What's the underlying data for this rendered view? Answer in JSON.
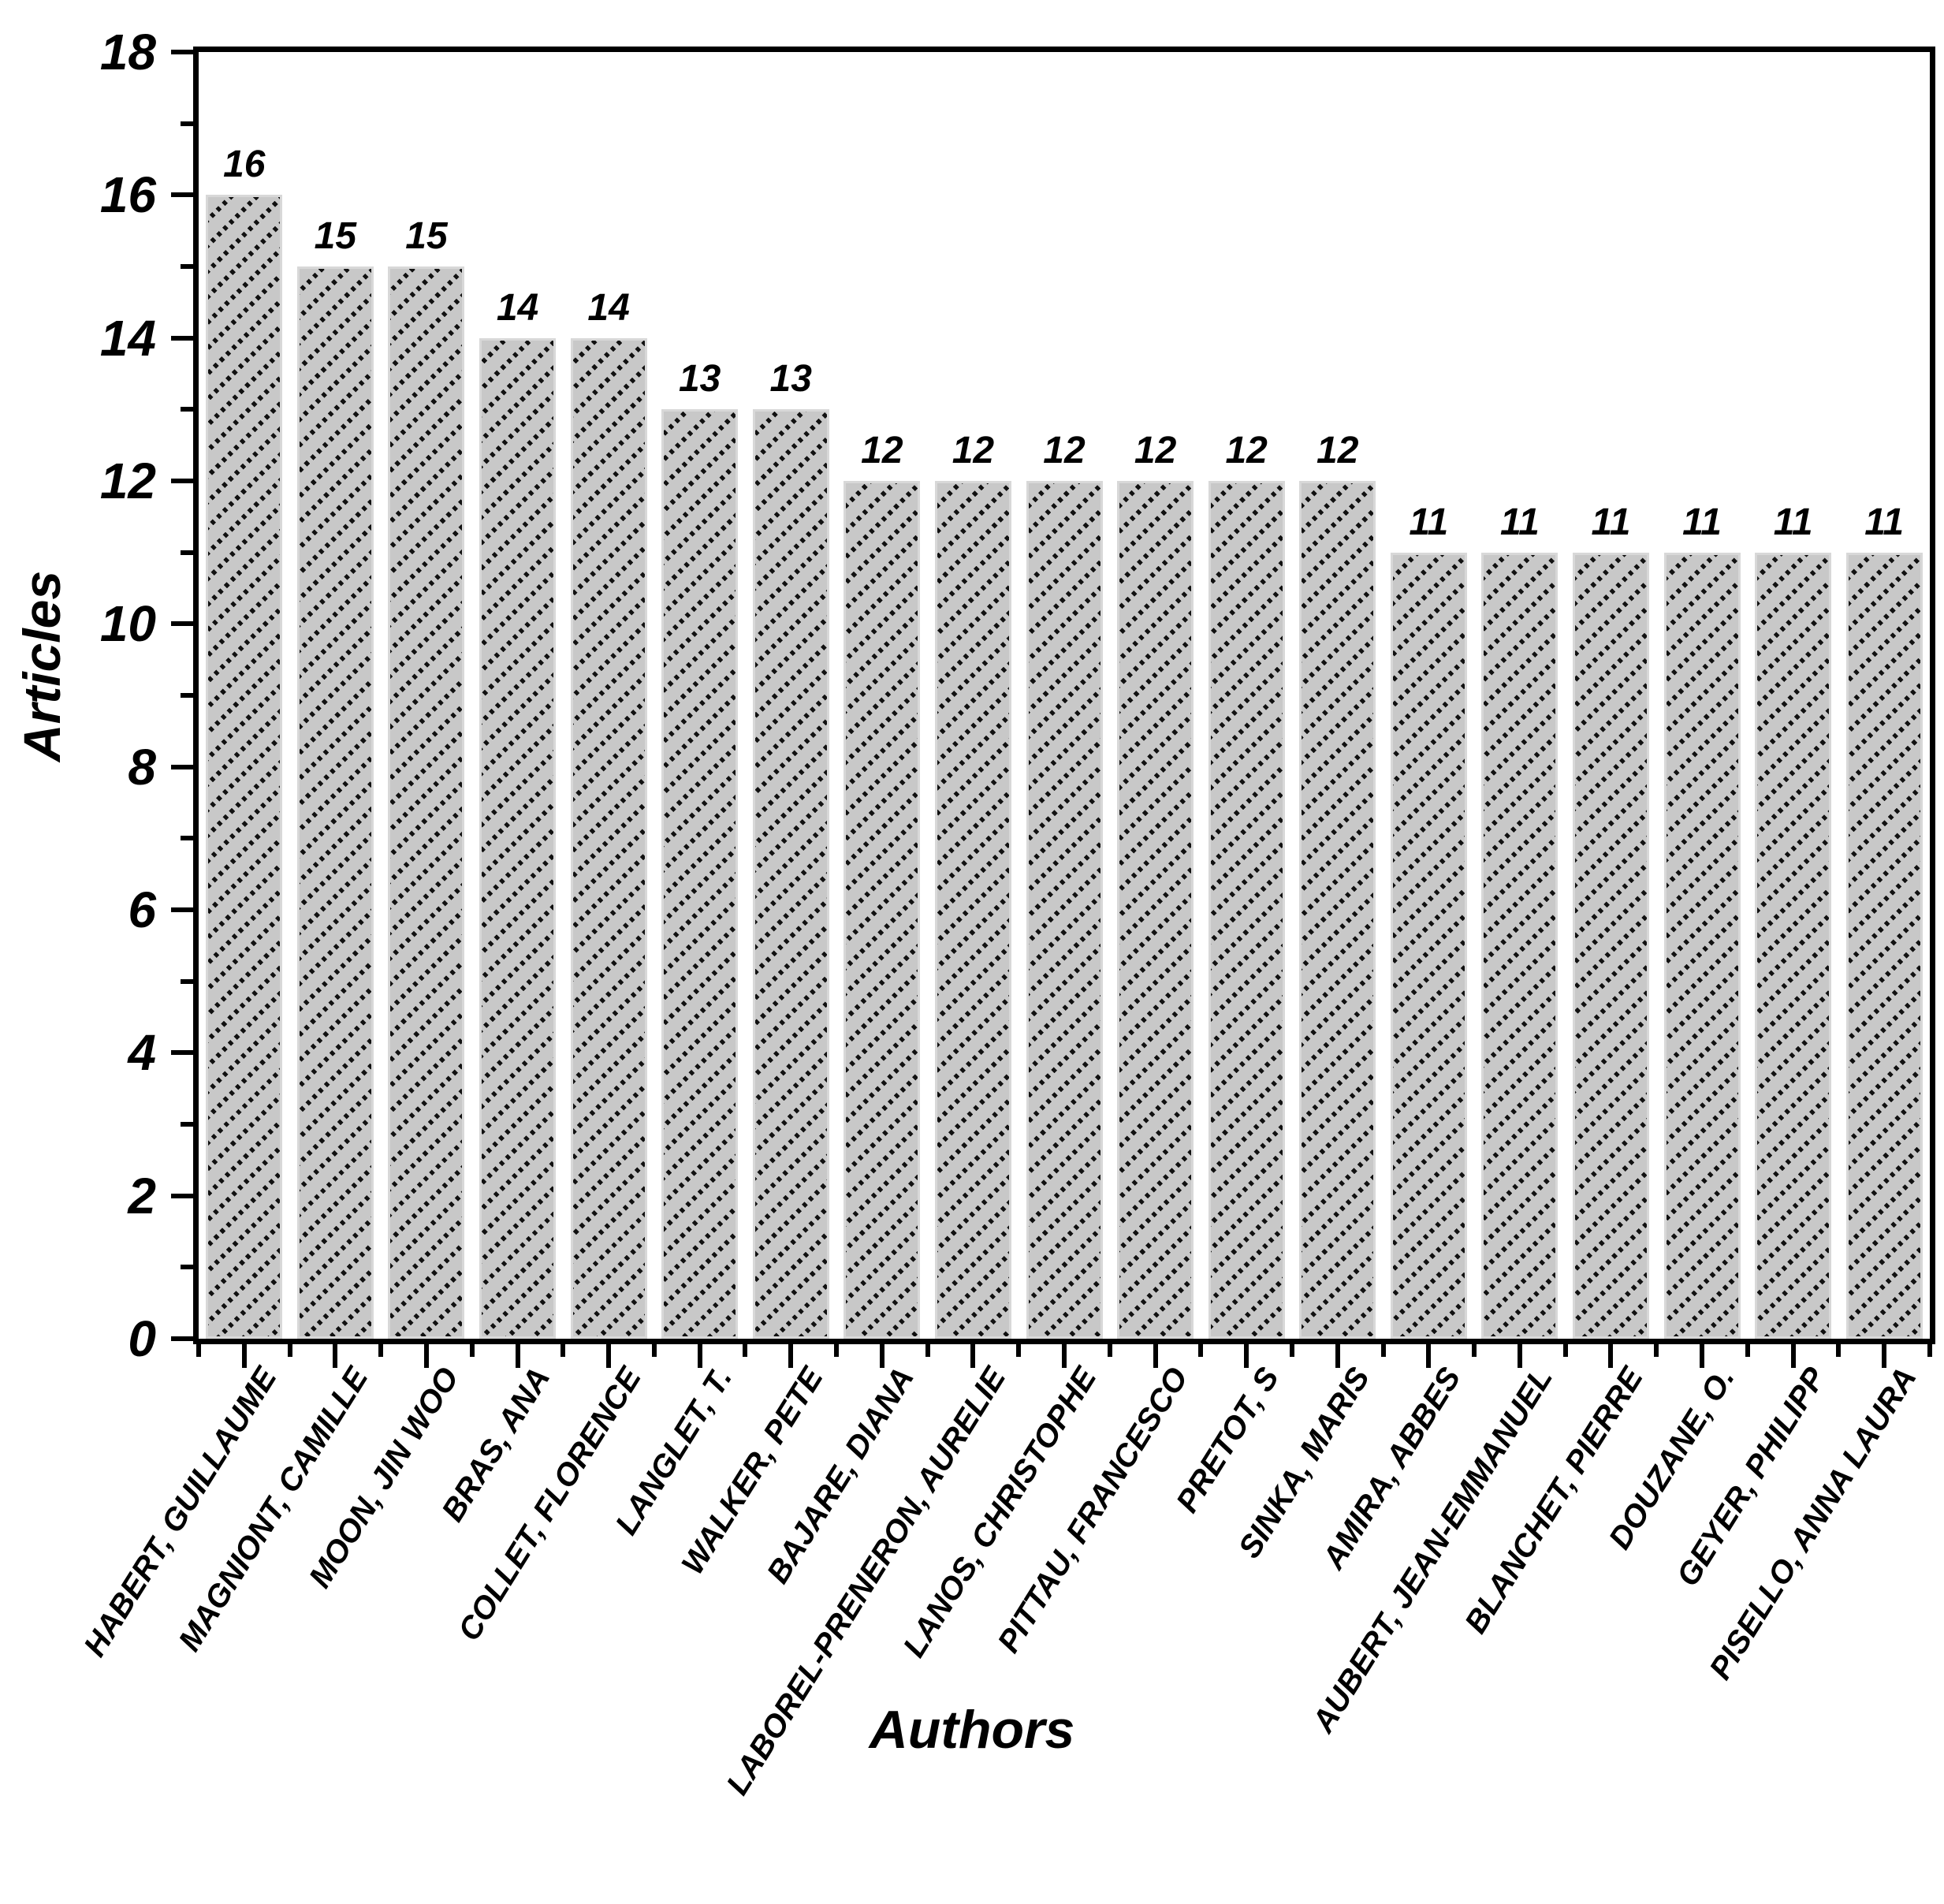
{
  "chart_data": {
    "type": "bar",
    "title": "",
    "xlabel": "Authors",
    "ylabel": "Articles",
    "ylim": [
      0,
      18
    ],
    "y_major_ticks": [
      0,
      2,
      4,
      6,
      8,
      10,
      12,
      14,
      16,
      18
    ],
    "y_minor_ticks": [
      1,
      3,
      5,
      7,
      9,
      11,
      13,
      15,
      17
    ],
    "grid": false,
    "legend_position": "none",
    "bar_fill_color": "#c8c8c8",
    "bar_hatch_style": "dotted-diagonal-lines",
    "axis_color": "#000000",
    "categories": [
      "HABERT, GUILLAUME",
      "MAGNIONT, CAMILLE",
      "MOON, JIN WOO",
      "BRAS, ANA",
      "COLLET, FLORENCE",
      "LANGLET, T.",
      "WALKER, PETE",
      "BAJARE, DIANA",
      "LABOREL-PRENERON, AURELIE",
      "LANOS, CHRISTOPHE",
      "PITTAU, FRANCESCO",
      "PRETOT, S",
      "SINKA, MARIS",
      "AMIRA, ABBES",
      "AUBERT, JEAN-EMMANUEL",
      "BLANCHET, PIERRE",
      "DOUZANE, O.",
      "GEYER, PHILIPP",
      "PISELLO, ANNA LAURA"
    ],
    "values": [
      16,
      15,
      15,
      14,
      14,
      13,
      13,
      12,
      12,
      12,
      12,
      12,
      12,
      11,
      11,
      11,
      11,
      11,
      11
    ],
    "bar_value_labels": [
      "16",
      "15",
      "15",
      "14",
      "14",
      "13",
      "13",
      "12",
      "12",
      "12",
      "12",
      "12",
      "12",
      "11",
      "11",
      "11",
      "11",
      "11",
      "11"
    ],
    "y_tick_labels": [
      "18",
      "16",
      "14",
      "12",
      "10",
      "8",
      "6",
      "4",
      "2",
      "0"
    ]
  }
}
